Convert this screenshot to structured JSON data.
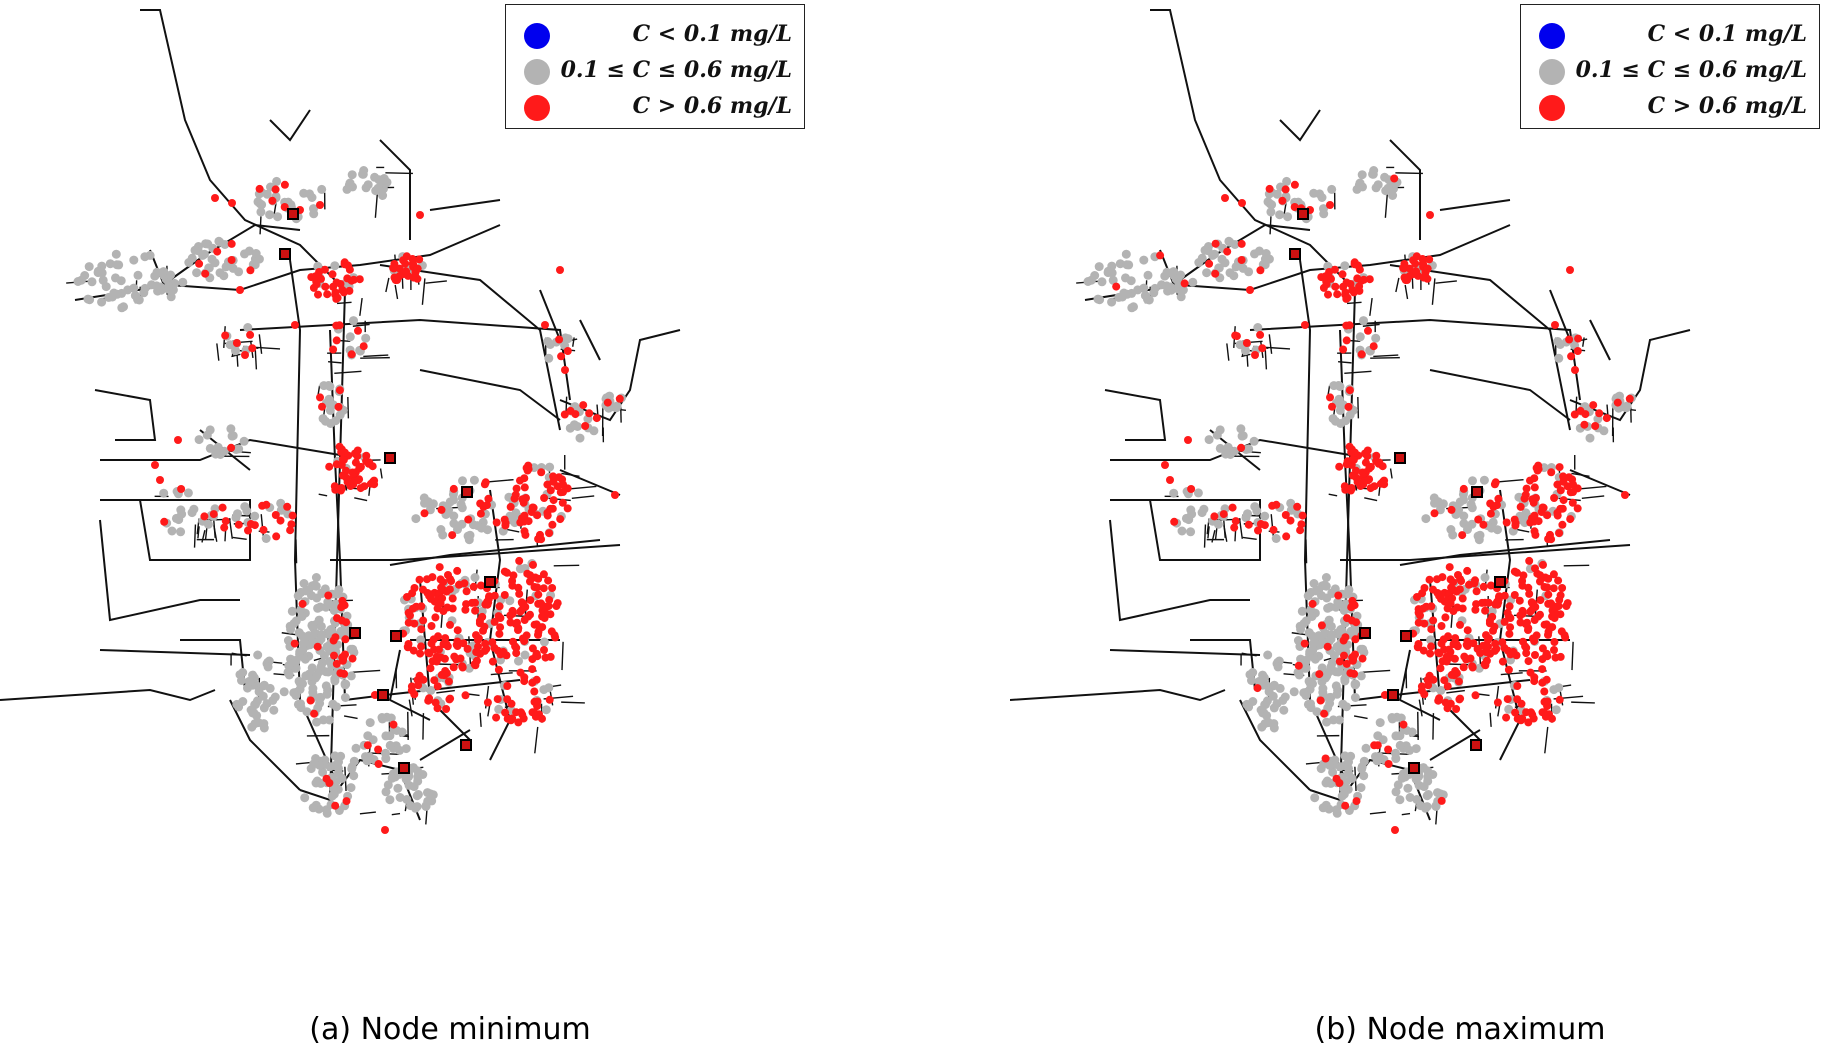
{
  "legend": {
    "items": [
      {
        "label": "C < 0.1 mg/L",
        "color": "#0000ee"
      },
      {
        "label": "0.1 ≤ C ≤ 0.6 mg/L",
        "color": "#b3b3b3"
      },
      {
        "label": "C > 0.6 mg/L",
        "color": "#ff1a1a"
      }
    ]
  },
  "panels": [
    {
      "caption": "(a) Node minimum"
    },
    {
      "caption": "(b) Node maximum"
    }
  ],
  "colors": {
    "pipe": "#111111",
    "tank": "#cc1111"
  }
}
